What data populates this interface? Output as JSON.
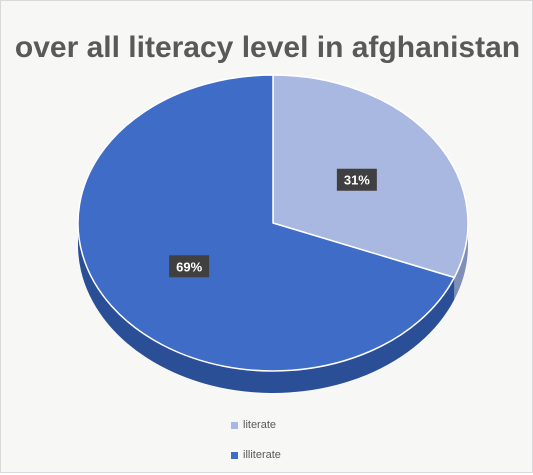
{
  "chart_data": {
    "type": "pie",
    "title": "over all literacy level in afghanistan",
    "categories": [
      "literate",
      "illiterate"
    ],
    "values": [
      31,
      69
    ],
    "labels": [
      "31%",
      "69%"
    ],
    "colors": [
      "#a9b8e0",
      "#3f6cc6"
    ],
    "side_colors": [
      "#7f8fb8",
      "#2b4f96"
    ],
    "legend_position": "bottom",
    "style": "3d"
  },
  "legend": {
    "items": [
      {
        "label": "literate",
        "color": "#a9b8e0"
      },
      {
        "label": "illiterate",
        "color": "#3f6cc6"
      }
    ]
  }
}
